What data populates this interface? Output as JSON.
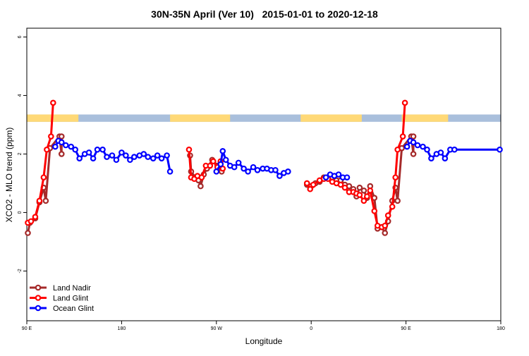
{
  "chart_data": {
    "type": "line",
    "title": "30N-35N April (Ver 10)   2015-01-01 to 2020-12-18",
    "xlabel": "Longitude",
    "ylabel": "XCO2 - MLO trend (ppm)",
    "xlim": [
      90,
      540
    ],
    "ylim": [
      -3.7,
      6.3
    ],
    "x_ticks": [
      {
        "value": 90,
        "label": "90 E"
      },
      {
        "value": 180,
        "label": "180"
      },
      {
        "value": 270,
        "label": "90 W"
      },
      {
        "value": 360,
        "label": "0"
      },
      {
        "value": 450,
        "label": "90 E"
      },
      {
        "value": 540,
        "label": "180"
      }
    ],
    "y_ticks": [
      {
        "value": -2,
        "label": "-2"
      },
      {
        "value": 0,
        "label": "0"
      },
      {
        "value": 2,
        "label": "2"
      },
      {
        "value": 4,
        "label": "4"
      },
      {
        "value": 6,
        "label": "6"
      }
    ],
    "grid": false,
    "legend_position": "bottom-left",
    "land_ocean_band": {
      "y_range": [
        3.1,
        3.35
      ],
      "ocean_color": "#a9bfdc",
      "land_color": "#ffd977",
      "land_segments": [
        [
          90,
          139
        ],
        [
          226,
          283
        ],
        [
          350,
          408
        ],
        [
          446,
          490
        ]
      ]
    },
    "series": [
      {
        "name": "Land Nadir",
        "color": "#a52a2a",
        "segments": [
          [
            [
              91,
              -0.7
            ],
            [
              93,
              -0.35
            ],
            [
              98,
              -0.2
            ],
            [
              102,
              0.35
            ],
            [
              106,
              0.85
            ],
            [
              108,
              0.4
            ],
            [
              112,
              2.2
            ],
            [
              121,
              2.6
            ],
            [
              123,
              2.0
            ],
            [
              123,
              2.6
            ]
          ],
          [
            [
              245,
              1.95
            ],
            [
              246,
              1.4
            ],
            [
              250,
              1.2
            ],
            [
              253,
              1.1
            ],
            [
              255,
              0.9
            ],
            [
              258,
              1.3
            ],
            [
              261,
              1.5
            ],
            [
              266,
              1.8
            ],
            [
              271,
              1.6
            ],
            [
              275,
              1.4
            ]
          ],
          [
            [
              356,
              0.95
            ],
            [
              360,
              0.9
            ],
            [
              364,
              1.0
            ],
            [
              368,
              1.05
            ],
            [
              372,
              1.2
            ],
            [
              376,
              1.2
            ],
            [
              380,
              1.2
            ],
            [
              384,
              1.1
            ],
            [
              388,
              1.1
            ],
            [
              392,
              0.95
            ],
            [
              396,
              0.9
            ],
            [
              400,
              0.8
            ],
            [
              403,
              0.55
            ],
            [
              406,
              0.85
            ],
            [
              410,
              0.75
            ],
            [
              413,
              0.5
            ],
            [
              416,
              0.9
            ],
            [
              420,
              0.5
            ],
            [
              423,
              -0.55
            ],
            [
              427,
              -0.5
            ],
            [
              430,
              -0.7
            ],
            [
              433,
              -0.3
            ],
            [
              437,
              0.4
            ],
            [
              440,
              0.85
            ],
            [
              442,
              0.4
            ],
            [
              446,
              2.2
            ],
            [
              455,
              2.6
            ],
            [
              457,
              2.0
            ],
            [
              457,
              2.6
            ]
          ]
        ]
      },
      {
        "name": "Land Glint",
        "color": "#ff0000",
        "segments": [
          [
            [
              91,
              -0.35
            ],
            [
              94,
              -0.3
            ],
            [
              98,
              -0.15
            ],
            [
              102,
              0.4
            ],
            [
              106,
              1.2
            ],
            [
              109,
              2.15
            ],
            [
              113,
              2.6
            ],
            [
              115,
              3.75
            ]
          ],
          [
            [
              244,
              2.15
            ],
            [
              246,
              1.2
            ],
            [
              249,
              1.15
            ],
            [
              252,
              1.25
            ],
            [
              256,
              1.2
            ],
            [
              260,
              1.6
            ],
            [
              264,
              1.6
            ],
            [
              267,
              1.75
            ],
            [
              271,
              1.55
            ],
            [
              274,
              1.75
            ],
            [
              276,
              1.5
            ]
          ],
          [
            [
              356,
              1.0
            ],
            [
              359,
              0.8
            ],
            [
              362,
              0.95
            ],
            [
              368,
              1.1
            ],
            [
              372,
              1.15
            ],
            [
              376,
              1.15
            ],
            [
              380,
              1.05
            ],
            [
              384,
              1.0
            ],
            [
              388,
              0.95
            ],
            [
              392,
              0.85
            ],
            [
              396,
              0.7
            ],
            [
              400,
              0.7
            ],
            [
              403,
              0.65
            ],
            [
              406,
              0.6
            ],
            [
              410,
              0.4
            ],
            [
              413,
              0.55
            ],
            [
              416,
              0.75
            ],
            [
              420,
              0.05
            ],
            [
              423,
              -0.45
            ],
            [
              427,
              -0.5
            ],
            [
              430,
              -0.45
            ],
            [
              433,
              -0.1
            ],
            [
              437,
              0.2
            ],
            [
              440,
              1.2
            ],
            [
              442,
              2.15
            ],
            [
              447,
              2.6
            ],
            [
              449,
              3.75
            ]
          ]
        ]
      },
      {
        "name": "Ocean Glint",
        "color": "#0000ff",
        "segments": [
          [
            [
              117,
              2.25
            ],
            [
              120,
              2.45
            ],
            [
              123,
              2.4
            ],
            [
              127,
              2.3
            ],
            [
              132,
              2.25
            ],
            [
              136,
              2.15
            ],
            [
              140,
              1.85
            ],
            [
              145,
              2.0
            ],
            [
              149,
              2.05
            ],
            [
              153,
              1.85
            ],
            [
              157,
              2.15
            ],
            [
              162,
              2.15
            ],
            [
              166,
              1.9
            ],
            [
              171,
              1.95
            ],
            [
              175,
              1.8
            ],
            [
              180,
              2.05
            ],
            [
              184,
              1.95
            ],
            [
              188,
              1.8
            ],
            [
              192,
              1.9
            ],
            [
              197,
              1.95
            ],
            [
              201,
              2.0
            ],
            [
              205,
              1.9
            ],
            [
              210,
              1.85
            ],
            [
              214,
              1.95
            ],
            [
              218,
              1.85
            ],
            [
              223,
              1.95
            ],
            [
              226,
              1.4
            ]
          ],
          [
            [
              270,
              1.4
            ],
            [
              274,
              1.65
            ],
            [
              276,
              2.1
            ],
            [
              279,
              1.8
            ],
            [
              283,
              1.6
            ],
            [
              287,
              1.55
            ],
            [
              291,
              1.7
            ],
            [
              296,
              1.5
            ],
            [
              300,
              1.4
            ],
            [
              305,
              1.55
            ],
            [
              309,
              1.45
            ],
            [
              314,
              1.5
            ],
            [
              318,
              1.5
            ],
            [
              322,
              1.45
            ],
            [
              326,
              1.45
            ],
            [
              330,
              1.25
            ],
            [
              334,
              1.35
            ],
            [
              338,
              1.4
            ]
          ],
          [
            [
              374,
              1.2
            ],
            [
              378,
              1.3
            ],
            [
              382,
              1.25
            ],
            [
              386,
              1.3
            ],
            [
              390,
              1.2
            ],
            [
              394,
              1.2
            ]
          ],
          [
            [
              451,
              2.25
            ],
            [
              454,
              2.45
            ],
            [
              457,
              2.4
            ],
            [
              461,
              2.3
            ],
            [
              466,
              2.25
            ],
            [
              470,
              2.15
            ],
            [
              474,
              1.85
            ],
            [
              479,
              2.0
            ],
            [
              483,
              2.05
            ],
            [
              487,
              1.85
            ],
            [
              492,
              2.15
            ],
            [
              496,
              2.15
            ],
            [
              539,
              2.15
            ]
          ]
        ]
      }
    ]
  }
}
